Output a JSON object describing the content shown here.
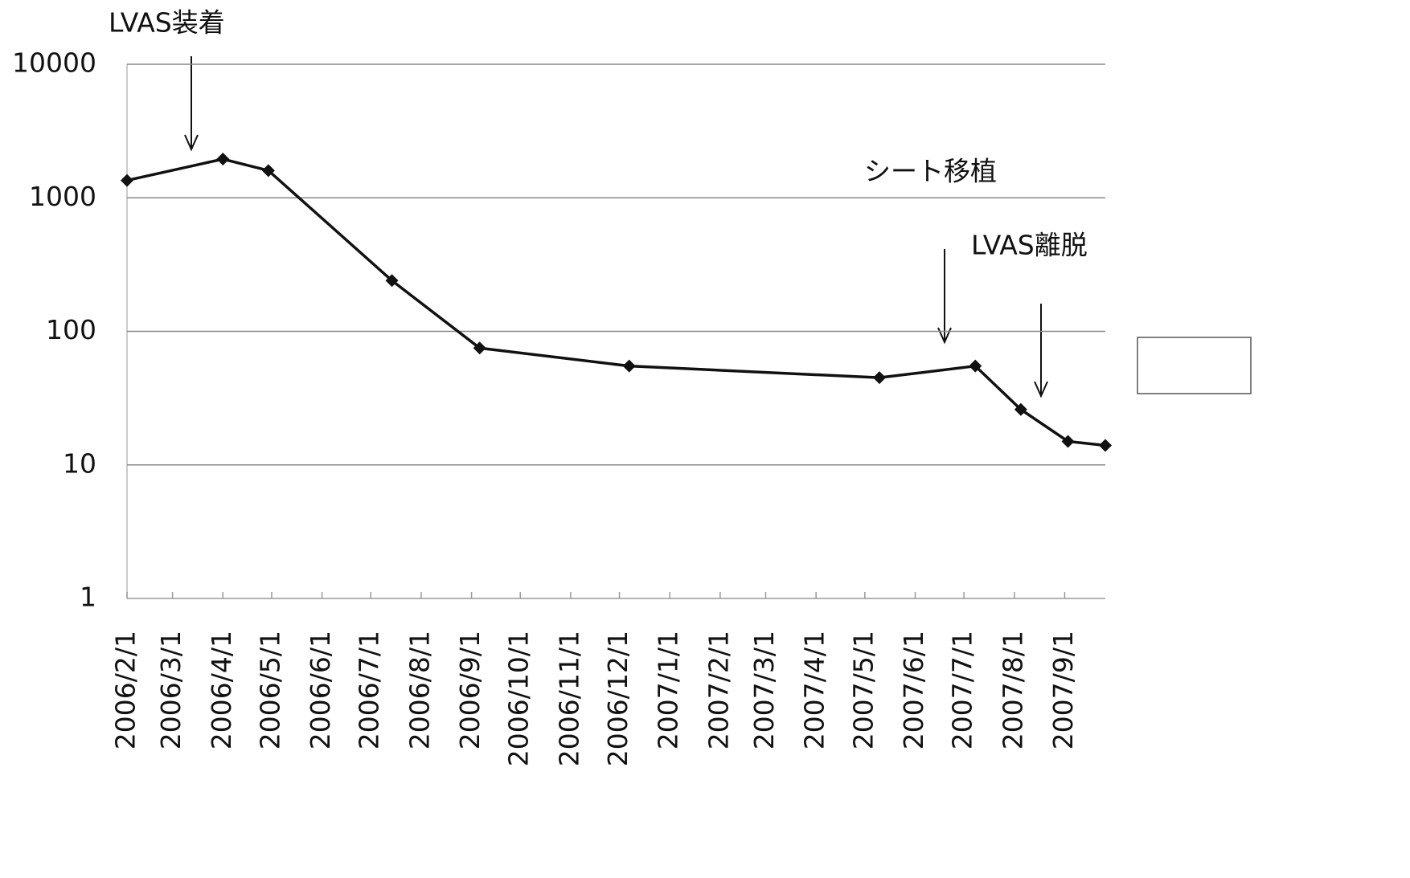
{
  "chart_data": {
    "type": "line",
    "annotations": [
      "LVAS装着",
      "シート移植",
      "LVAS離脱"
    ],
    "x": [
      "2006-02-01",
      "2006-04-01",
      "2006-04-29",
      "2006-07-14",
      "2006-09-06",
      "2006-12-07",
      "2007-05-10",
      "2007-07-08",
      "2007-08-05",
      "2007-09-03",
      "2007-09-26"
    ],
    "series": [
      {
        "name": null,
        "color": "#111111",
        "values": [
          1350,
          1950,
          1600,
          240,
          75,
          55,
          45,
          55,
          26,
          15,
          14
        ]
      }
    ],
    "xlim": [
      "2006-02-01",
      "2007-09-26"
    ],
    "xticks": [
      {
        "value": "2006-02-01",
        "label": "2006/2/1"
      },
      {
        "value": "2006-03-01",
        "label": "2006/3/1"
      },
      {
        "value": "2006-04-01",
        "label": "2006/4/1"
      },
      {
        "value": "2006-05-01",
        "label": "2006/5/1"
      },
      {
        "value": "2006-06-01",
        "label": "2006/6/1"
      },
      {
        "value": "2006-07-01",
        "label": "2006/7/1"
      },
      {
        "value": "2006-08-01",
        "label": "2006/8/1"
      },
      {
        "value": "2006-09-01",
        "label": "2006/9/1"
      },
      {
        "value": "2006-10-01",
        "label": "2006/10/1"
      },
      {
        "value": "2006-11-01",
        "label": "2006/11/1"
      },
      {
        "value": "2006-12-01",
        "label": "2006/12/1"
      },
      {
        "value": "2007-01-01",
        "label": "2007/1/1"
      },
      {
        "value": "2007-02-01",
        "label": "2007/2/1"
      },
      {
        "value": "2007-03-01",
        "label": "2007/3/1"
      },
      {
        "value": "2007-04-01",
        "label": "2007/4/1"
      },
      {
        "value": "2007-05-01",
        "label": "2007/5/1"
      },
      {
        "value": "2007-06-01",
        "label": "2007/6/1"
      },
      {
        "value": "2007-07-01",
        "label": "2007/7/1"
      },
      {
        "value": "2007-08-01",
        "label": "2007/8/1"
      },
      {
        "value": "2007-09-01",
        "label": "2007/9/1"
      }
    ],
    "ylim": [
      1,
      10000
    ],
    "yticks": [
      1,
      10,
      100,
      1000,
      10000
    ],
    "log_y": true,
    "grid": true
  }
}
